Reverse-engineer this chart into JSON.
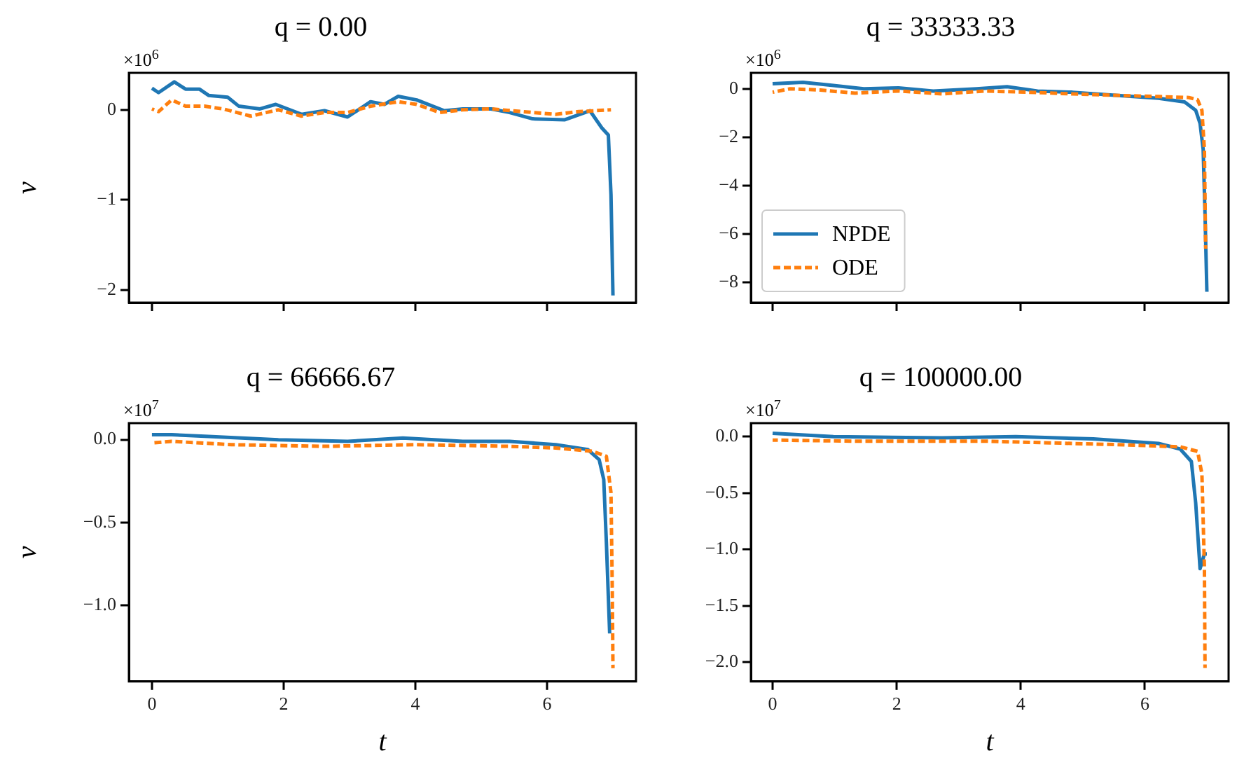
{
  "chart_data": [
    {
      "type": "line",
      "title": "q = 0.00",
      "ylabel": "v",
      "annotations": [
        "×10$^{6}$"
      ],
      "xlim": [
        -0.35,
        7.35
      ],
      "xticks": [
        0,
        2,
        4,
        6
      ],
      "ylim": [
        -2.14,
        0.41
      ],
      "yticks": [
        -2,
        -1,
        0
      ],
      "tick_labels": "y",
      "grid": false,
      "legend": false,
      "marker": "none",
      "series": [
        {
          "color": "#1f77b4",
          "line_style": "solid",
          "x": [
            0,
            0.1,
            0.34,
            0.51,
            0.72,
            0.86,
            1.15,
            1.32,
            1.64,
            1.88,
            2.27,
            2.62,
            2.97,
            3.32,
            3.53,
            3.74,
            4.02,
            4.44,
            4.72,
            5.15,
            5.43,
            5.78,
            6.27,
            6.65,
            6.83,
            6.93,
            6.97,
            7.0
          ],
          "values": [
            0.24,
            0.19,
            0.31,
            0.23,
            0.23,
            0.16,
            0.14,
            0.04,
            0.01,
            0.06,
            -0.05,
            -0.01,
            -0.08,
            0.09,
            0.06,
            0.15,
            0.11,
            -0.01,
            0.01,
            0.01,
            -0.03,
            -0.1,
            -0.11,
            -0.01,
            -0.2,
            -0.28,
            -0.94,
            -2.06
          ]
        },
        {
          "color": "#ff7f0e",
          "line_style": "dashed",
          "x": [
            0,
            0.1,
            0.3,
            0.51,
            0.8,
            1.08,
            1.5,
            1.92,
            2.27,
            2.62,
            2.97,
            3.32,
            3.74,
            4.02,
            4.37,
            4.72,
            5.15,
            5.78,
            6.13,
            6.48,
            6.97
          ],
          "values": [
            0.01,
            -0.02,
            0.11,
            0.04,
            0.04,
            0.01,
            -0.07,
            0,
            -0.07,
            -0.03,
            -0.03,
            0.04,
            0.09,
            0.06,
            -0.03,
            0,
            0.01,
            -0.03,
            -0.05,
            -0.02,
            0
          ]
        }
      ]
    },
    {
      "type": "line",
      "title": "q = 33333.33",
      "annotations": [
        "×10$^{6}$"
      ],
      "xlim": [
        -0.35,
        7.35
      ],
      "xticks": [
        0,
        2,
        4,
        6
      ],
      "ylim": [
        -8.84,
        0.66
      ],
      "yticks": [
        -8,
        -6,
        -4,
        -2,
        0
      ],
      "tick_labels": "y",
      "grid": false,
      "legend": "bottom left",
      "marker": "none",
      "series": [
        {
          "name": "NPDE",
          "color": "#1f77b4",
          "line_style": "solid",
          "x": [
            0,
            0.49,
            0.98,
            1.47,
            2.03,
            2.59,
            3.29,
            3.78,
            4.27,
            4.83,
            5.52,
            6.22,
            6.64,
            6.82,
            6.89,
            6.94,
            6.97,
            7.0
          ],
          "values": [
            0.21,
            0.27,
            0.14,
            0,
            0.04,
            -0.09,
            0,
            0.09,
            -0.09,
            -0.14,
            -0.27,
            -0.39,
            -0.54,
            -0.89,
            -1.43,
            -2.5,
            -5.18,
            -8.39
          ]
        },
        {
          "name": "ODE",
          "color": "#ff7f0e",
          "line_style": "dashed",
          "x": [
            0,
            0.28,
            0.77,
            1.33,
            2.03,
            2.73,
            3.43,
            4.13,
            4.83,
            5.52,
            6.22,
            6.71,
            6.85,
            6.92,
            6.96,
            6.98
          ],
          "values": [
            -0.14,
            0,
            -0.05,
            -0.18,
            -0.09,
            -0.21,
            -0.09,
            -0.14,
            -0.21,
            -0.27,
            -0.32,
            -0.36,
            -0.45,
            -0.89,
            -2.5,
            -6.61
          ]
        }
      ]
    },
    {
      "type": "line",
      "title": "q = 66666.67",
      "xlabel": "t",
      "ylabel": "v",
      "annotations": [
        "×10$^{7}$"
      ],
      "xlim": [
        -0.35,
        7.35
      ],
      "xticks": [
        0,
        2,
        4,
        6
      ],
      "ylim": [
        -1.46,
        0.1
      ],
      "yticks": [
        {
          "value": -1,
          "label": "−1.0"
        },
        {
          "value": -0.5,
          "label": "−0.5"
        },
        {
          "value": 0,
          "label": "0.0"
        }
      ],
      "grid": false,
      "legend": false,
      "marker": "none",
      "series": [
        {
          "color": "#1f77b4",
          "line_style": "solid",
          "x": [
            0,
            0.3,
            0.86,
            1.92,
            2.97,
            3.81,
            4.72,
            5.43,
            6.13,
            6.62,
            6.79,
            6.86,
            6.9,
            6.95
          ],
          "values": [
            0.03,
            0.03,
            0.02,
            0,
            -0.01,
            0.01,
            -0.01,
            -0.01,
            -0.03,
            -0.06,
            -0.12,
            -0.24,
            -0.62,
            -1.17
          ]
        },
        {
          "color": "#ff7f0e",
          "line_style": "dashed",
          "x": [
            0,
            0.3,
            1.21,
            2.62,
            4.02,
            5.43,
            6.13,
            6.69,
            6.9,
            6.97,
            6.99,
            7.0
          ],
          "values": [
            -0.02,
            -0.01,
            -0.03,
            -0.04,
            -0.03,
            -0.04,
            -0.05,
            -0.07,
            -0.1,
            -0.32,
            -0.91,
            -1.38
          ]
        }
      ]
    },
    {
      "type": "line",
      "title": "q = 100000.00",
      "xlabel": "t",
      "annotations": [
        "×10$^{7}$"
      ],
      "xlim": [
        -0.35,
        7.35
      ],
      "xticks": [
        0,
        2,
        4,
        6
      ],
      "ylim": [
        -2.17,
        0.12
      ],
      "yticks": [
        {
          "value": -2,
          "label": "−2.0"
        },
        {
          "value": -1.5,
          "label": "−1.5"
        },
        {
          "value": -1,
          "label": "−1.0"
        },
        {
          "value": -0.5,
          "label": "−0.5"
        },
        {
          "value": 0,
          "label": "0.0"
        }
      ],
      "grid": false,
      "legend": false,
      "marker": "none",
      "series": [
        {
          "color": "#1f77b4",
          "line_style": "solid",
          "x": [
            0,
            0.98,
            2.73,
            3.92,
            5.17,
            6.22,
            6.57,
            6.75,
            6.82,
            6.89,
            6.96,
            7.0
          ],
          "values": [
            0.03,
            0,
            -0.01,
            0,
            -0.02,
            -0.06,
            -0.11,
            -0.22,
            -0.59,
            -1.17,
            -1.04,
            -1.04
          ]
        },
        {
          "color": "#ff7f0e",
          "line_style": "dashed",
          "x": [
            0,
            1.33,
            3.43,
            5.52,
            6.57,
            6.85,
            6.92,
            6.96,
            6.97
          ],
          "values": [
            -0.03,
            -0.04,
            -0.04,
            -0.07,
            -0.09,
            -0.13,
            -0.33,
            -1.15,
            -2.05
          ]
        }
      ]
    }
  ]
}
